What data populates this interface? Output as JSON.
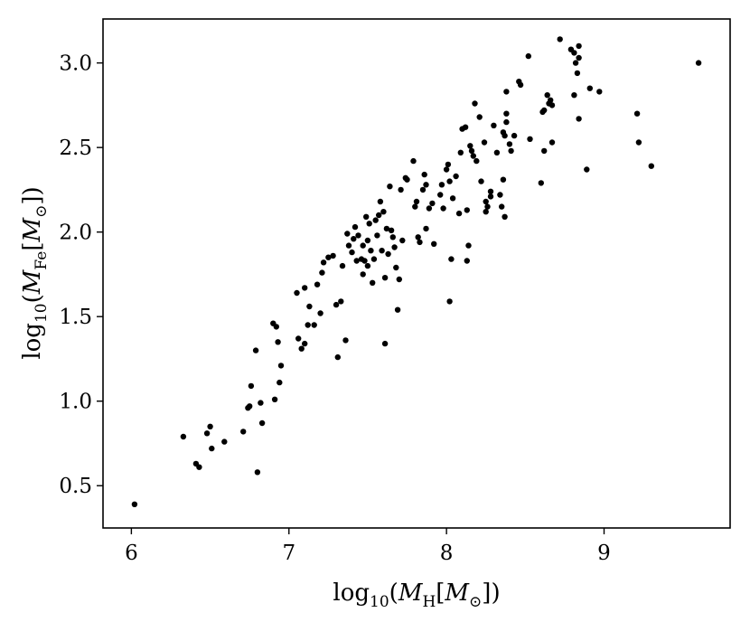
{
  "chart_data": {
    "type": "scatter",
    "title": "",
    "xlabel": "log10(MH[M⊙])",
    "ylabel": "log10(MFe[M⊙])",
    "xlabel_parts": {
      "pre": "log",
      "pre_sub": "10",
      "open": "(",
      "var": "M",
      "var_sub": "H",
      "mid": "[",
      "unit": "M",
      "unit_sub": "⊙",
      "close": "])"
    },
    "ylabel_parts": {
      "pre": "log",
      "pre_sub": "10",
      "open": "(",
      "var": "M",
      "var_sub": "Fe",
      "mid": "[",
      "unit": "M",
      "unit_sub": "⊙",
      "close": "])"
    },
    "xlim": [
      5.82,
      9.8
    ],
    "ylim": [
      0.25,
      3.26
    ],
    "x_ticks": [
      6,
      7,
      8,
      9
    ],
    "x_tick_labels": [
      "6",
      "7",
      "8",
      "9"
    ],
    "y_ticks": [
      0.5,
      1.0,
      1.5,
      2.0,
      2.5,
      3.0
    ],
    "y_tick_labels": [
      "0.5",
      "1.0",
      "1.5",
      "2.0",
      "2.5",
      "3.0"
    ],
    "grid": false,
    "marker_color": "#000000",
    "points": [
      [
        6.02,
        0.39
      ],
      [
        6.33,
        0.79
      ],
      [
        6.41,
        0.63
      ],
      [
        6.43,
        0.61
      ],
      [
        6.48,
        0.81
      ],
      [
        6.5,
        0.85
      ],
      [
        6.51,
        0.72
      ],
      [
        6.59,
        0.76
      ],
      [
        6.71,
        0.82
      ],
      [
        6.74,
        0.96
      ],
      [
        6.75,
        0.97
      ],
      [
        6.76,
        1.09
      ],
      [
        6.79,
        1.3
      ],
      [
        6.8,
        0.58
      ],
      [
        6.82,
        0.99
      ],
      [
        6.83,
        0.87
      ],
      [
        6.9,
        1.46
      ],
      [
        6.91,
        1.01
      ],
      [
        6.92,
        1.44
      ],
      [
        6.93,
        1.35
      ],
      [
        6.94,
        1.11
      ],
      [
        6.95,
        1.21
      ],
      [
        7.05,
        1.64
      ],
      [
        7.06,
        1.37
      ],
      [
        7.08,
        1.31
      ],
      [
        7.1,
        1.67
      ],
      [
        7.1,
        1.34
      ],
      [
        7.12,
        1.45
      ],
      [
        7.13,
        1.56
      ],
      [
        7.16,
        1.45
      ],
      [
        7.18,
        1.69
      ],
      [
        7.2,
        1.52
      ],
      [
        7.21,
        1.76
      ],
      [
        7.22,
        1.82
      ],
      [
        7.25,
        1.85
      ],
      [
        7.28,
        1.86
      ],
      [
        7.3,
        1.57
      ],
      [
        7.31,
        1.26
      ],
      [
        7.33,
        1.59
      ],
      [
        7.34,
        1.8
      ],
      [
        7.36,
        1.36
      ],
      [
        7.37,
        1.99
      ],
      [
        7.38,
        1.92
      ],
      [
        7.4,
        1.88
      ],
      [
        7.41,
        1.96
      ],
      [
        7.42,
        2.03
      ],
      [
        7.43,
        1.83
      ],
      [
        7.44,
        1.98
      ],
      [
        7.46,
        1.84
      ],
      [
        7.47,
        1.92
      ],
      [
        7.47,
        1.75
      ],
      [
        7.48,
        1.83
      ],
      [
        7.49,
        2.09
      ],
      [
        7.5,
        1.95
      ],
      [
        7.5,
        1.8
      ],
      [
        7.51,
        2.05
      ],
      [
        7.52,
        1.89
      ],
      [
        7.53,
        1.7
      ],
      [
        7.54,
        1.84
      ],
      [
        7.55,
        2.07
      ],
      [
        7.56,
        1.98
      ],
      [
        7.57,
        2.1
      ],
      [
        7.58,
        2.18
      ],
      [
        7.59,
        1.89
      ],
      [
        7.6,
        2.12
      ],
      [
        7.61,
        1.34
      ],
      [
        7.61,
        1.73
      ],
      [
        7.62,
        2.02
      ],
      [
        7.63,
        1.87
      ],
      [
        7.64,
        2.27
      ],
      [
        7.65,
        2.01
      ],
      [
        7.66,
        1.97
      ],
      [
        7.67,
        1.91
      ],
      [
        7.68,
        1.79
      ],
      [
        7.69,
        1.54
      ],
      [
        7.7,
        1.72
      ],
      [
        7.71,
        2.25
      ],
      [
        7.72,
        1.95
      ],
      [
        7.74,
        2.32
      ],
      [
        7.75,
        2.31
      ],
      [
        7.79,
        2.42
      ],
      [
        7.8,
        2.15
      ],
      [
        7.81,
        2.18
      ],
      [
        7.82,
        1.97
      ],
      [
        7.83,
        1.94
      ],
      [
        7.85,
        2.25
      ],
      [
        7.86,
        2.34
      ],
      [
        7.87,
        2.28
      ],
      [
        7.87,
        2.02
      ],
      [
        7.89,
        2.14
      ],
      [
        7.91,
        2.17
      ],
      [
        7.92,
        1.93
      ],
      [
        7.96,
        2.22
      ],
      [
        7.97,
        2.28
      ],
      [
        7.98,
        2.14
      ],
      [
        8.0,
        2.37
      ],
      [
        8.01,
        2.4
      ],
      [
        8.02,
        2.3
      ],
      [
        8.02,
        1.59
      ],
      [
        8.03,
        1.84
      ],
      [
        8.04,
        2.2
      ],
      [
        8.06,
        2.33
      ],
      [
        8.08,
        2.11
      ],
      [
        8.09,
        2.47
      ],
      [
        8.1,
        2.61
      ],
      [
        8.12,
        2.62
      ],
      [
        8.13,
        2.13
      ],
      [
        8.13,
        1.83
      ],
      [
        8.14,
        1.92
      ],
      [
        8.15,
        2.51
      ],
      [
        8.16,
        2.48
      ],
      [
        8.17,
        2.45
      ],
      [
        8.18,
        2.76
      ],
      [
        8.19,
        2.42
      ],
      [
        8.21,
        2.68
      ],
      [
        8.22,
        2.3
      ],
      [
        8.24,
        2.53
      ],
      [
        8.25,
        2.12
      ],
      [
        8.25,
        2.18
      ],
      [
        8.26,
        2.15
      ],
      [
        8.28,
        2.21
      ],
      [
        8.28,
        2.24
      ],
      [
        8.3,
        2.63
      ],
      [
        8.32,
        2.47
      ],
      [
        8.34,
        2.22
      ],
      [
        8.35,
        2.15
      ],
      [
        8.36,
        2.59
      ],
      [
        8.36,
        2.31
      ],
      [
        8.37,
        2.09
      ],
      [
        8.37,
        2.57
      ],
      [
        8.38,
        2.7
      ],
      [
        8.38,
        2.65
      ],
      [
        8.38,
        2.83
      ],
      [
        8.4,
        2.52
      ],
      [
        8.41,
        2.48
      ],
      [
        8.43,
        2.57
      ],
      [
        8.46,
        2.89
      ],
      [
        8.47,
        2.87
      ],
      [
        8.52,
        3.04
      ],
      [
        8.53,
        2.55
      ],
      [
        8.6,
        2.29
      ],
      [
        8.61,
        2.71
      ],
      [
        8.62,
        2.48
      ],
      [
        8.62,
        2.72
      ],
      [
        8.64,
        2.81
      ],
      [
        8.65,
        2.76
      ],
      [
        8.66,
        2.78
      ],
      [
        8.67,
        2.53
      ],
      [
        8.67,
        2.75
      ],
      [
        8.72,
        3.14
      ],
      [
        8.79,
        3.08
      ],
      [
        8.81,
        3.06
      ],
      [
        8.81,
        2.81
      ],
      [
        8.82,
        3.0
      ],
      [
        8.83,
        2.94
      ],
      [
        8.84,
        3.1
      ],
      [
        8.84,
        3.03
      ],
      [
        8.84,
        2.67
      ],
      [
        8.89,
        2.37
      ],
      [
        8.91,
        2.85
      ],
      [
        8.97,
        2.83
      ],
      [
        9.21,
        2.7
      ],
      [
        9.22,
        2.53
      ],
      [
        9.3,
        2.39
      ],
      [
        9.6,
        3.0
      ]
    ]
  }
}
